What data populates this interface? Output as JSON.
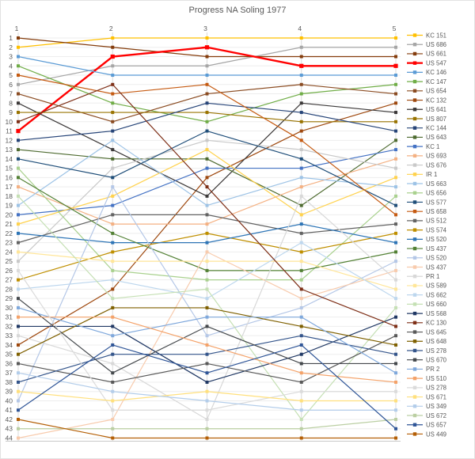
{
  "window": {
    "title": "Progress NA Soling 1977"
  },
  "chart_data": {
    "type": "line",
    "subtype": "bump-rank-progression",
    "title": "Progress NA Soling 1977",
    "xlabel": "",
    "ylabel": "",
    "x": [
      1,
      2,
      3,
      4,
      5
    ],
    "x_tick_labels": [
      "1",
      "2",
      "3",
      "4",
      "5"
    ],
    "y_axis": {
      "min": 1,
      "max": 44,
      "step": 1,
      "inverted": true,
      "tick_labels": [
        "1",
        "2",
        "3",
        "4",
        "5",
        "6",
        "7",
        "8",
        "9",
        "10",
        "11",
        "12",
        "13",
        "14",
        "15",
        "16",
        "17",
        "18",
        "19",
        "20",
        "21",
        "22",
        "23",
        "24",
        "25",
        "26",
        "27",
        "28",
        "29",
        "30",
        "31",
        "32",
        "33",
        "34",
        "35",
        "36",
        "37",
        "38",
        "39",
        "40",
        "41",
        "42",
        "43",
        "44"
      ]
    },
    "grid": true,
    "legend_position": "right",
    "highlight_series": "US 547",
    "title_color": "#595959",
    "axis_text_color": "#595959",
    "grid_color_h": "#ededed",
    "grid_color_v": "#d9d9d9",
    "series": [
      {
        "name": "KC 151",
        "color": "#FFC000",
        "ranks": [
          2,
          1,
          1,
          1,
          1
        ]
      },
      {
        "name": "US 686",
        "color": "#A6A6A6",
        "ranks": [
          6,
          4,
          4,
          2,
          2
        ]
      },
      {
        "name": "US 661",
        "color": "#843C0C",
        "ranks": [
          1,
          2,
          3,
          3,
          3
        ]
      },
      {
        "name": "US 547",
        "color": "#FF0000",
        "ranks": [
          11,
          3,
          2,
          4,
          4
        ]
      },
      {
        "name": "KC 146",
        "color": "#5B9BD5",
        "ranks": [
          3,
          5,
          5,
          5,
          5
        ]
      },
      {
        "name": "KC 147",
        "color": "#70AD47",
        "ranks": [
          4,
          8,
          10,
          7,
          6
        ]
      },
      {
        "name": "US 654",
        "color": "#8A4B21",
        "ranks": [
          7,
          10,
          7,
          6,
          7
        ]
      },
      {
        "name": "KC 132",
        "color": "#9E480E",
        "ranks": [
          34,
          28,
          16,
          11,
          8
        ]
      },
      {
        "name": "US 641",
        "color": "#3B3838",
        "ranks": [
          8,
          13,
          18,
          8,
          9
        ]
      },
      {
        "name": "US 807",
        "color": "#997300",
        "ranks": [
          9,
          9,
          9,
          10,
          10
        ]
      },
      {
        "name": "KC 144",
        "color": "#264478",
        "ranks": [
          12,
          11,
          8,
          9,
          11
        ]
      },
      {
        "name": "US 643",
        "color": "#4E6B30",
        "ranks": [
          13,
          14,
          14,
          19,
          12
        ]
      },
      {
        "name": "KC 1",
        "color": "#4472C4",
        "ranks": [
          20,
          19,
          15,
          15,
          13
        ]
      },
      {
        "name": "US 693",
        "color": "#F4B183",
        "ranks": [
          17,
          21,
          21,
          17,
          14
        ]
      },
      {
        "name": "US 676",
        "color": "#C9C9C9",
        "ranks": [
          25,
          15,
          12,
          13,
          15
        ]
      },
      {
        "name": "IR 1",
        "color": "#FFD24D",
        "ranks": [
          21,
          18,
          13,
          20,
          16
        ]
      },
      {
        "name": "US 663",
        "color": "#9DC3E6",
        "ranks": [
          19,
          12,
          19,
          16,
          17
        ]
      },
      {
        "name": "US 656",
        "color": "#A9D18E",
        "ranks": [
          15,
          26,
          27,
          27,
          18
        ]
      },
      {
        "name": "US 577",
        "color": "#1F4E79",
        "ranks": [
          14,
          16,
          11,
          14,
          19
        ]
      },
      {
        "name": "US 658",
        "color": "#C55A11",
        "ranks": [
          5,
          7,
          6,
          12,
          20
        ]
      },
      {
        "name": "US 512",
        "color": "#636363",
        "ranks": [
          23,
          20,
          20,
          22,
          21
        ]
      },
      {
        "name": "US 574",
        "color": "#BF8F00",
        "ranks": [
          27,
          24,
          22,
          24,
          22
        ]
      },
      {
        "name": "US 520",
        "color": "#2E75B6",
        "ranks": [
          22,
          23,
          23,
          21,
          23
        ]
      },
      {
        "name": "US 437",
        "color": "#538135",
        "ranks": [
          16,
          22,
          26,
          26,
          24
        ]
      },
      {
        "name": "US 520",
        "color": "#B4C7E7",
        "ranks": [
          40,
          17,
          33,
          30,
          25
        ]
      },
      {
        "name": "US 437",
        "color": "#F8CBAD",
        "ranks": [
          44,
          42,
          24,
          29,
          26
        ]
      },
      {
        "name": "PR 1",
        "color": "#D8D8D8",
        "ranks": [
          33,
          36,
          42,
          18,
          27
        ]
      },
      {
        "name": "US 589",
        "color": "#FFE699",
        "ranks": [
          24,
          25,
          25,
          25,
          28
        ]
      },
      {
        "name": "US 662",
        "color": "#BDD7EE",
        "ranks": [
          28,
          27,
          29,
          23,
          29
        ]
      },
      {
        "name": "US 660",
        "color": "#C5E0B4",
        "ranks": [
          18,
          29,
          28,
          42,
          30
        ]
      },
      {
        "name": "US 568",
        "color": "#203864",
        "ranks": [
          32,
          32,
          38,
          35,
          31
        ]
      },
      {
        "name": "KC 130",
        "color": "#7E2F17",
        "ranks": [
          10,
          6,
          17,
          28,
          32
        ]
      },
      {
        "name": "US 645",
        "color": "#595959",
        "ranks": [
          36,
          38,
          36,
          38,
          33
        ]
      },
      {
        "name": "US 648",
        "color": "#7F6000",
        "ranks": [
          35,
          30,
          30,
          32,
          34
        ]
      },
      {
        "name": "US 278",
        "color": "#34558B",
        "ranks": [
          38,
          35,
          35,
          33,
          35
        ]
      },
      {
        "name": "US 670",
        "color": "#44484C",
        "ranks": [
          29,
          37,
          32,
          36,
          36
        ]
      },
      {
        "name": "PR 2",
        "color": "#7FA8DC",
        "ranks": [
          30,
          33,
          31,
          31,
          37
        ]
      },
      {
        "name": "US 510",
        "color": "#F4A269",
        "ranks": [
          31,
          31,
          34,
          37,
          38
        ]
      },
      {
        "name": "US 278",
        "color": "#DBDBDB",
        "ranks": [
          26,
          41,
          41,
          39,
          39
        ]
      },
      {
        "name": "US 671",
        "color": "#FFE07D",
        "ranks": [
          39,
          40,
          39,
          40,
          40
        ]
      },
      {
        "name": "US 349",
        "color": "#B3CDEA",
        "ranks": [
          37,
          39,
          40,
          41,
          41
        ]
      },
      {
        "name": "US 672",
        "color": "#BBCFA3",
        "ranks": [
          43,
          43,
          43,
          43,
          42
        ]
      },
      {
        "name": "US 657",
        "color": "#2F5597",
        "ranks": [
          41,
          34,
          37,
          34,
          43
        ]
      },
      {
        "name": "US 449",
        "color": "#B45F06",
        "ranks": [
          42,
          44,
          44,
          44,
          44
        ]
      }
    ]
  }
}
